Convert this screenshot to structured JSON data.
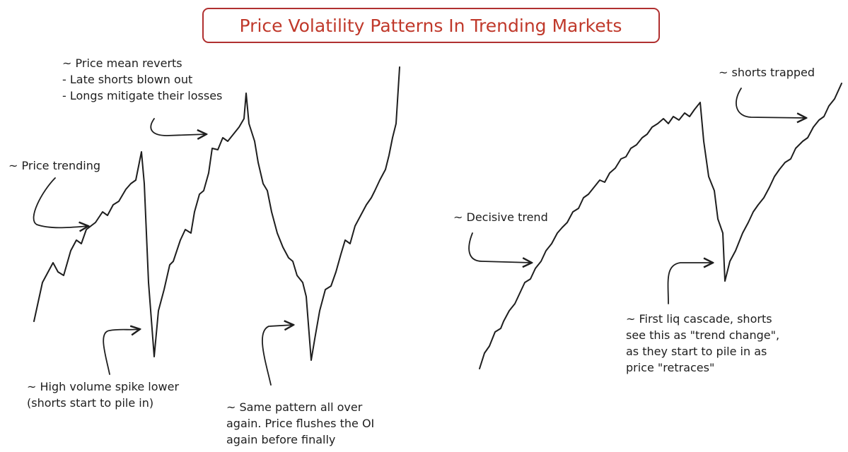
{
  "title": "Price Volatility Patterns In Trending Markets",
  "annotations": [
    {
      "lines": [
        "~ Price mean reverts",
        "- Late shorts blown out",
        "- Longs mitigate their losses"
      ]
    },
    {
      "lines": [
        "~ Price trending"
      ]
    },
    {
      "lines": [
        "~ High volume spike lower",
        "(shorts start to pile in)"
      ]
    },
    {
      "lines": [
        "~ Same pattern all over",
        "again. Price flushes the OI",
        "again before finally"
      ]
    },
    {
      "lines": [
        "~ shorts trapped"
      ]
    },
    {
      "lines": [
        "~ Decisive trend"
      ]
    },
    {
      "lines": [
        "~ First liq cascade, shorts",
        "see this as \"trend change\",",
        "as they start to pile in as",
        "price \"retraces\""
      ]
    }
  ]
}
